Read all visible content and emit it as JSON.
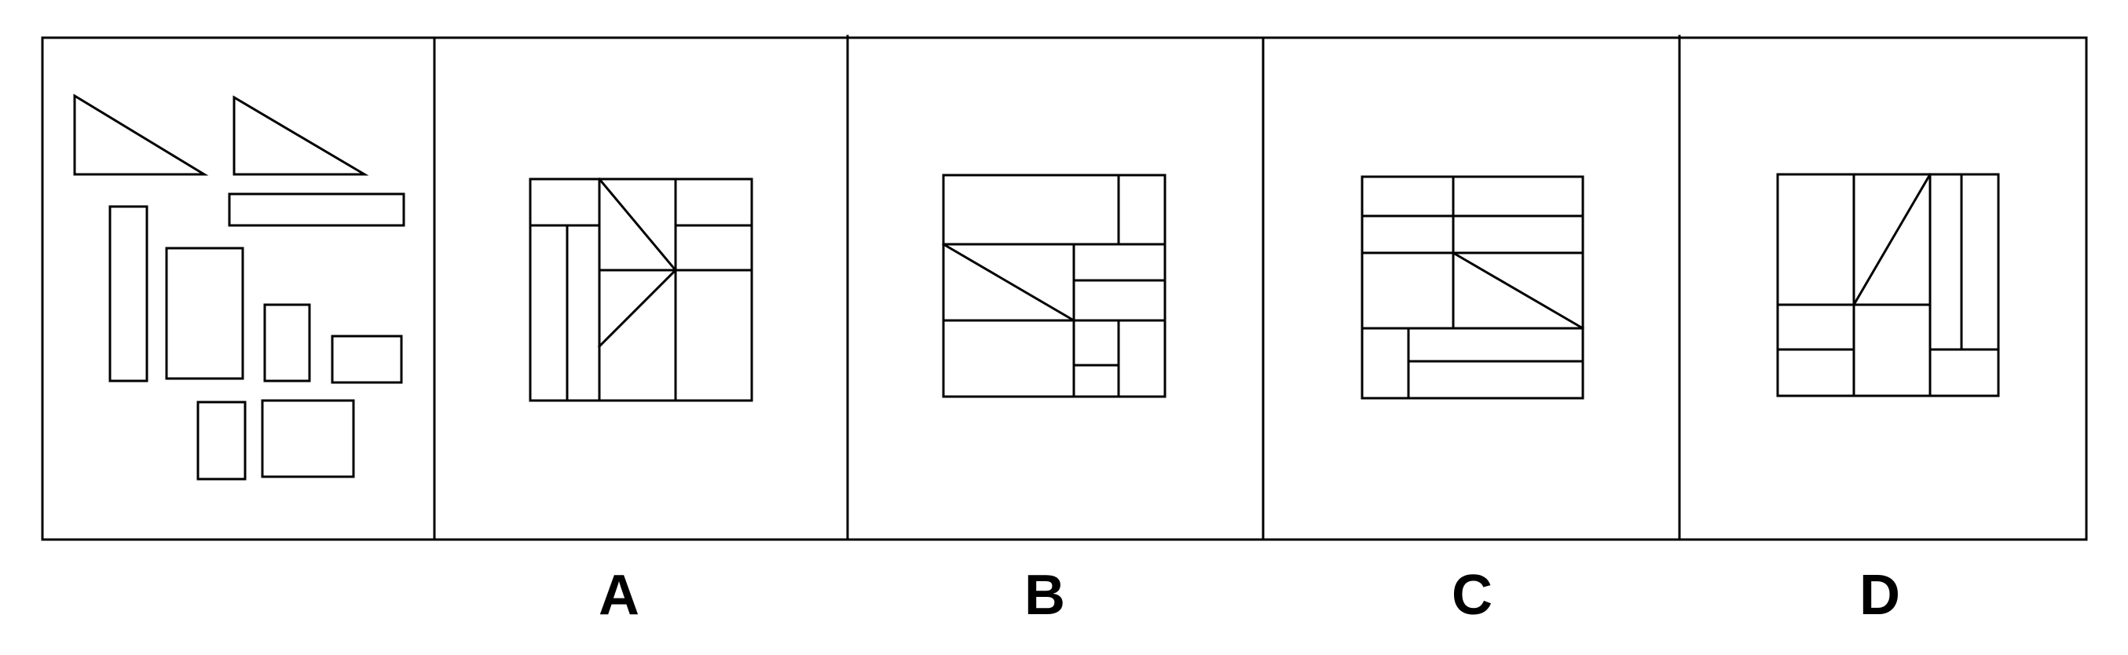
{
  "options": [
    {
      "label": "A"
    },
    {
      "label": "B"
    },
    {
      "label": "C"
    },
    {
      "label": "D"
    }
  ],
  "colors": {
    "stroke": "#000000",
    "background": "#ffffff"
  }
}
